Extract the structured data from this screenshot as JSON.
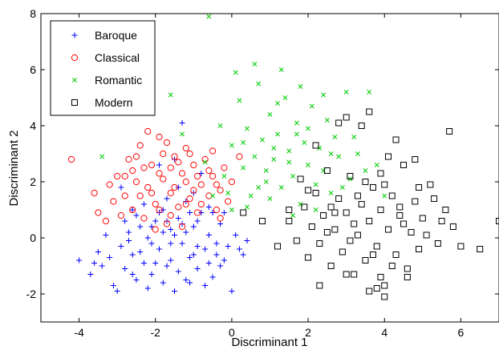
{
  "chart_data": {
    "type": "scatter",
    "title": "",
    "xlabel": "Discriminant 1",
    "ylabel": "Discriminant 2",
    "xlim": [
      -5,
      7
    ],
    "ylim": [
      -3,
      8
    ],
    "xticks": [
      -4,
      -2,
      0,
      2,
      4,
      6
    ],
    "yticks": [
      -2,
      0,
      2,
      4,
      6,
      8
    ],
    "grid": false,
    "legend_position": "top-left",
    "series": [
      {
        "name": "Baroque",
        "marker": "plus",
        "color": "#0000ff",
        "points": [
          [
            -4.0,
            -0.8
          ],
          [
            -3.7,
            -1.3
          ],
          [
            -3.5,
            -0.5
          ],
          [
            -3.4,
            -1.0
          ],
          [
            -3.2,
            -0.7
          ],
          [
            -3.0,
            -1.9
          ],
          [
            -2.9,
            -0.3
          ],
          [
            -2.8,
            -1.1
          ],
          [
            -2.7,
            0.2
          ],
          [
            -2.6,
            -0.6
          ],
          [
            -2.5,
            -1.5
          ],
          [
            -2.4,
            0.4
          ],
          [
            -2.3,
            -0.9
          ],
          [
            -2.2,
            0.0
          ],
          [
            -2.1,
            -1.3
          ],
          [
            -2.0,
            0.6
          ],
          [
            -1.9,
            -0.4
          ],
          [
            -1.8,
            1.0
          ],
          [
            -1.7,
            -1.0
          ],
          [
            -1.6,
            0.3
          ],
          [
            -1.5,
            -1.9
          ],
          [
            -1.4,
            0.7
          ],
          [
            -1.3,
            -0.2
          ],
          [
            -1.2,
            1.3
          ],
          [
            -1.1,
            -0.7
          ],
          [
            -1.0,
            0.4
          ],
          [
            -0.9,
            -1.1
          ],
          [
            -0.8,
            0.9
          ],
          [
            -0.7,
            -0.4
          ],
          [
            -0.6,
            0.1
          ],
          [
            -0.5,
            -1.4
          ],
          [
            -0.4,
            -0.2
          ],
          [
            -0.3,
            0.5
          ],
          [
            -0.2,
            -0.8
          ],
          [
            0.0,
            -1.9
          ],
          [
            0.1,
            0.1
          ],
          [
            0.2,
            -0.4
          ],
          [
            -1.9,
            0.9
          ],
          [
            -1.5,
            0.1
          ],
          [
            -1.2,
            -1.5
          ],
          [
            -2.3,
            1.2
          ],
          [
            -1.0,
            1.6
          ],
          [
            -1.6,
            -0.8
          ],
          [
            -2.7,
            -0.1
          ],
          [
            -1.3,
            0.5
          ],
          [
            -0.6,
            1.1
          ],
          [
            -1.8,
            -1.6
          ],
          [
            -2.1,
            -0.2
          ],
          [
            -0.9,
            -0.3
          ],
          [
            -1.4,
            1.8
          ],
          [
            -1.1,
            0.9
          ],
          [
            -2.5,
            0.8
          ],
          [
            -1.7,
            0.6
          ],
          [
            -0.7,
            -1.7
          ],
          [
            -0.3,
            -1.0
          ],
          [
            -3.1,
            -1.7
          ],
          [
            -3.3,
            0.1
          ],
          [
            -2.6,
            -1.3
          ],
          [
            -2.2,
            -1.8
          ],
          [
            -0.2,
            0.9
          ],
          [
            -1.5,
            2.8
          ],
          [
            -1.3,
            4.1
          ],
          [
            -0.8,
            2.3
          ],
          [
            -2.9,
            1.8
          ],
          [
            -1.9,
            2.6
          ],
          [
            -0.5,
            0.9
          ],
          [
            -0.1,
            -0.3
          ],
          [
            -1.6,
            -0.2
          ],
          [
            -2.0,
            -0.9
          ],
          [
            -1.0,
            -0.6
          ],
          [
            -2.4,
            -0.5
          ],
          [
            -1.2,
            0.2
          ],
          [
            -0.4,
            -0.6
          ],
          [
            -1.8,
            0.2
          ],
          [
            -2.8,
            0.6
          ],
          [
            -0.9,
            0.6
          ],
          [
            -1.4,
            -1.2
          ],
          [
            -2.1,
            0.4
          ],
          [
            -1.7,
            1.4
          ],
          [
            -3.6,
            -0.9
          ],
          [
            0.3,
            -0.6
          ],
          [
            0.4,
            -0.1
          ],
          [
            -1.1,
            -1.6
          ],
          [
            -2.6,
            1.0
          ],
          [
            -0.6,
            -0.9
          ]
        ]
      },
      {
        "name": "Classical",
        "marker": "circle",
        "color": "#ff0000",
        "points": [
          [
            -4.2,
            2.8
          ],
          [
            -3.6,
            1.6
          ],
          [
            -3.3,
            0.6
          ],
          [
            -3.1,
            1.3
          ],
          [
            -3.0,
            2.2
          ],
          [
            -2.9,
            0.8
          ],
          [
            -2.8,
            1.5
          ],
          [
            -2.7,
            2.8
          ],
          [
            -2.6,
            1.0
          ],
          [
            -2.5,
            2.0
          ],
          [
            -2.4,
            3.3
          ],
          [
            -2.3,
            0.7
          ],
          [
            -2.2,
            1.8
          ],
          [
            -2.1,
            2.6
          ],
          [
            -2.0,
            1.2
          ],
          [
            -1.9,
            3.6
          ],
          [
            -1.8,
            2.1
          ],
          [
            -1.7,
            0.5
          ],
          [
            -1.6,
            1.6
          ],
          [
            -1.5,
            2.9
          ],
          [
            -1.4,
            1.1
          ],
          [
            -1.3,
            2.3
          ],
          [
            -1.2,
            3.2
          ],
          [
            -1.1,
            1.4
          ],
          [
            -1.0,
            2.6
          ],
          [
            -0.9,
            0.9
          ],
          [
            -0.8,
            1.9
          ],
          [
            -0.7,
            2.8
          ],
          [
            -0.6,
            1.5
          ],
          [
            -0.5,
            2.2
          ],
          [
            -0.4,
            1.0
          ],
          [
            -0.3,
            1.7
          ],
          [
            -0.2,
            2.5
          ],
          [
            -0.1,
            1.3
          ],
          [
            0.0,
            2.0
          ],
          [
            0.2,
            2.9
          ],
          [
            -2.2,
            3.8
          ],
          [
            -1.8,
            3.0
          ],
          [
            -1.5,
            1.8
          ],
          [
            -1.2,
            2.0
          ],
          [
            -2.6,
            2.4
          ],
          [
            -2.0,
            0.3
          ],
          [
            -1.6,
            2.5
          ],
          [
            -1.1,
            3.0
          ],
          [
            -0.8,
            1.2
          ],
          [
            -2.4,
            1.5
          ],
          [
            -1.9,
            1.0
          ],
          [
            -1.4,
            2.7
          ],
          [
            -0.6,
            2.4
          ],
          [
            -1.7,
            3.4
          ],
          [
            -1.0,
            1.7
          ],
          [
            -2.8,
            2.2
          ],
          [
            -3.2,
            1.9
          ],
          [
            -0.3,
            0.7
          ],
          [
            -1.3,
            0.4
          ],
          [
            -0.9,
            2.2
          ],
          [
            -2.1,
            1.6
          ],
          [
            -1.6,
            0.8
          ],
          [
            -2.5,
            2.9
          ],
          [
            -0.5,
            3.1
          ],
          [
            -1.2,
            1.2
          ],
          [
            -1.9,
            2.3
          ],
          [
            -3.5,
            0.9
          ],
          [
            -2.3,
            2.5
          ],
          [
            -0.4,
            1.9
          ]
        ]
      },
      {
        "name": "Romantic",
        "marker": "x",
        "color": "#00cc00",
        "points": [
          [
            -3.4,
            2.9
          ],
          [
            -1.3,
            3.7
          ],
          [
            -0.7,
            2.7
          ],
          [
            -0.3,
            4.0
          ],
          [
            -0.1,
            1.6
          ],
          [
            0.0,
            3.3
          ],
          [
            0.2,
            4.9
          ],
          [
            0.3,
            2.5
          ],
          [
            0.4,
            3.9
          ],
          [
            0.5,
            1.5
          ],
          [
            0.6,
            2.9
          ],
          [
            0.7,
            5.5
          ],
          [
            0.8,
            3.5
          ],
          [
            0.9,
            2.0
          ],
          [
            1.0,
            4.4
          ],
          [
            1.1,
            2.8
          ],
          [
            1.2,
            3.7
          ],
          [
            1.3,
            1.8
          ],
          [
            1.4,
            5.0
          ],
          [
            1.5,
            3.1
          ],
          [
            1.6,
            2.2
          ],
          [
            1.7,
            4.1
          ],
          [
            1.8,
            1.2
          ],
          [
            1.9,
            3.4
          ],
          [
            2.0,
            2.6
          ],
          [
            2.1,
            4.7
          ],
          [
            2.2,
            1.9
          ],
          [
            2.3,
            3.2
          ],
          [
            2.4,
            2.4
          ],
          [
            2.5,
            4.2
          ],
          [
            2.6,
            1.6
          ],
          [
            2.7,
            3.6
          ],
          [
            2.8,
            2.9
          ],
          [
            3.0,
            5.2
          ],
          [
            3.1,
            2.1
          ],
          [
            3.3,
            3.0
          ],
          [
            3.5,
            2.4
          ],
          [
            3.8,
            2.6
          ],
          [
            4.0,
            1.5
          ],
          [
            0.1,
            5.9
          ],
          [
            0.6,
            6.2
          ],
          [
            1.3,
            6.0
          ],
          [
            -0.6,
            7.9
          ],
          [
            -1.6,
            5.1
          ],
          [
            0.4,
            1.1
          ],
          [
            1.0,
            1.4
          ],
          [
            1.6,
            0.8
          ],
          [
            2.2,
            1.0
          ],
          [
            0.9,
            2.4
          ],
          [
            1.5,
            2.7
          ],
          [
            2.0,
            3.9
          ],
          [
            0.3,
            3.4
          ],
          [
            1.2,
            4.8
          ],
          [
            2.6,
            3.0
          ],
          [
            -0.2,
            2.2
          ],
          [
            1.8,
            5.4
          ],
          [
            0.7,
            1.8
          ],
          [
            2.4,
            5.1
          ],
          [
            3.2,
            3.6
          ],
          [
            0.0,
            1.0
          ],
          [
            1.1,
            3.2
          ],
          [
            1.7,
            3.7
          ],
          [
            2.9,
            1.8
          ],
          [
            -0.5,
            1.5
          ],
          [
            3.6,
            5.2
          ]
        ]
      },
      {
        "name": "Modern",
        "marker": "square",
        "color": "#000000",
        "points": [
          [
            0.3,
            0.9
          ],
          [
            0.8,
            0.6
          ],
          [
            1.2,
            -0.3
          ],
          [
            1.5,
            0.6
          ],
          [
            1.7,
            -0.1
          ],
          [
            1.9,
            1.1
          ],
          [
            2.0,
            -0.7
          ],
          [
            2.1,
            0.4
          ],
          [
            2.2,
            1.6
          ],
          [
            2.3,
            -0.2
          ],
          [
            2.4,
            0.8
          ],
          [
            2.5,
            2.4
          ],
          [
            2.6,
            -1.0
          ],
          [
            2.7,
            0.3
          ],
          [
            2.8,
            1.4
          ],
          [
            2.9,
            -0.5
          ],
          [
            3.0,
            0.9
          ],
          [
            3.1,
            2.2
          ],
          [
            3.2,
            -1.3
          ],
          [
            3.3,
            0.1
          ],
          [
            3.4,
            1.2
          ],
          [
            3.5,
            -0.8
          ],
          [
            3.6,
            0.6
          ],
          [
            3.7,
            1.8
          ],
          [
            3.8,
            -0.3
          ],
          [
            3.9,
            1.0
          ],
          [
            4.0,
            -1.7
          ],
          [
            4.1,
            0.3
          ],
          [
            4.2,
            1.5
          ],
          [
            4.3,
            -0.6
          ],
          [
            4.4,
            0.8
          ],
          [
            4.5,
            2.6
          ],
          [
            4.6,
            -1.1
          ],
          [
            4.7,
            0.2
          ],
          [
            4.8,
            1.3
          ],
          [
            4.9,
            -0.4
          ],
          [
            5.0,
            0.7
          ],
          [
            5.2,
            1.9
          ],
          [
            5.4,
            -0.2
          ],
          [
            5.6,
            1.0
          ],
          [
            5.8,
            0.4
          ],
          [
            6.0,
            -0.3
          ],
          [
            6.5,
            -0.4
          ],
          [
            7.0,
            0.6
          ],
          [
            5.7,
            3.8
          ],
          [
            3.0,
            4.3
          ],
          [
            3.4,
            4.0
          ],
          [
            3.6,
            4.5
          ],
          [
            2.8,
            4.1
          ],
          [
            1.8,
            2.1
          ],
          [
            2.2,
            3.3
          ],
          [
            3.9,
            2.3
          ],
          [
            4.3,
            3.5
          ],
          [
            4.1,
            2.9
          ],
          [
            4.8,
            2.8
          ],
          [
            3.9,
            -1.4
          ],
          [
            3.6,
            -1.9
          ],
          [
            4.0,
            -2.1
          ],
          [
            3.0,
            -1.3
          ],
          [
            3.8,
            -1.8
          ],
          [
            4.6,
            -1.4
          ],
          [
            2.3,
            -1.7
          ],
          [
            5.1,
            0.1
          ],
          [
            4.4,
            1.1
          ],
          [
            3.3,
            1.5
          ],
          [
            2.7,
            0.9
          ],
          [
            3.7,
            -0.6
          ],
          [
            4.5,
            0.5
          ],
          [
            2.5,
            0.2
          ],
          [
            5.3,
            1.4
          ],
          [
            3.1,
            -0.1
          ],
          [
            4.2,
            -1.0
          ],
          [
            3.5,
            2.0
          ],
          [
            2.0,
            1.7
          ],
          [
            4.9,
            1.8
          ],
          [
            1.5,
            1.0
          ],
          [
            5.5,
            0.6
          ],
          [
            3.2,
            0.5
          ],
          [
            4.0,
            1.9
          ],
          [
            2.6,
            1.1
          ]
        ]
      }
    ]
  }
}
